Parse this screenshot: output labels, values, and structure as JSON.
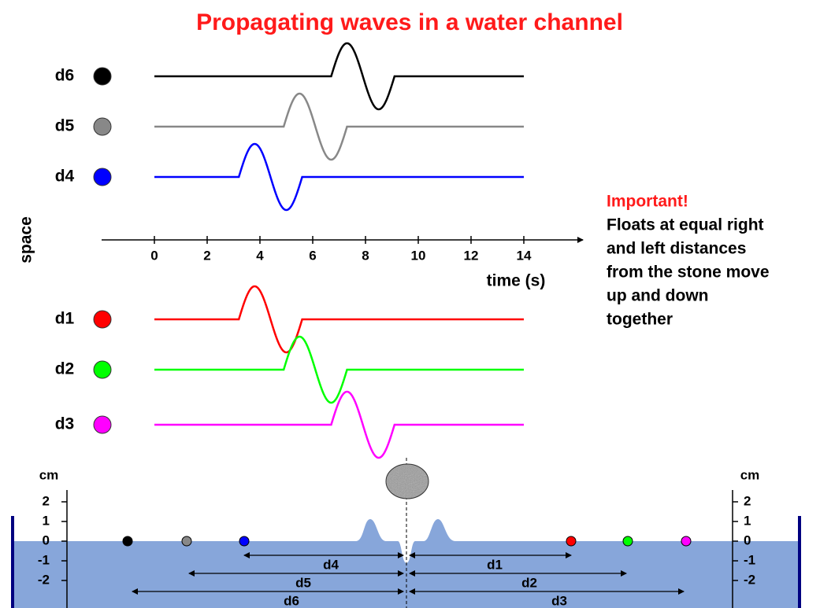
{
  "title": "Propagating waves in a water channel",
  "axis": {
    "y_label": "space",
    "x_label": "time (s)",
    "xlim": [
      -2,
      16
    ],
    "xticks": [
      0,
      2,
      4,
      6,
      8,
      10,
      12,
      14
    ],
    "trace_span": [
      0,
      14
    ]
  },
  "traces": [
    {
      "label": "d6",
      "color": "#000000",
      "arrival": 6.7,
      "duration": 2.4
    },
    {
      "label": "d5",
      "color": "#888888",
      "arrival": 4.9,
      "duration": 2.4
    },
    {
      "label": "d4",
      "color": "#0000ff",
      "arrival": 3.2,
      "duration": 2.4
    },
    {
      "label": "d1",
      "color": "#ff0000",
      "arrival": 3.2,
      "duration": 2.4
    },
    {
      "label": "d2",
      "color": "#00ff00",
      "arrival": 4.9,
      "duration": 2.4
    },
    {
      "label": "d3",
      "color": "#ff00ff",
      "arrival": 6.7,
      "duration": 2.4
    }
  ],
  "note": {
    "heading": "Important!",
    "lines": [
      "Floats at equal right",
      "and left distances",
      "from the stone move",
      "up and down",
      "together"
    ]
  },
  "channel": {
    "unit": "cm",
    "ylim": [
      -3.4,
      2.6
    ],
    "yticks": [
      2,
      1,
      0,
      -1,
      -2
    ],
    "distances": [
      "d4",
      "d1",
      "d5",
      "d2",
      "d6",
      "d3"
    ]
  }
}
